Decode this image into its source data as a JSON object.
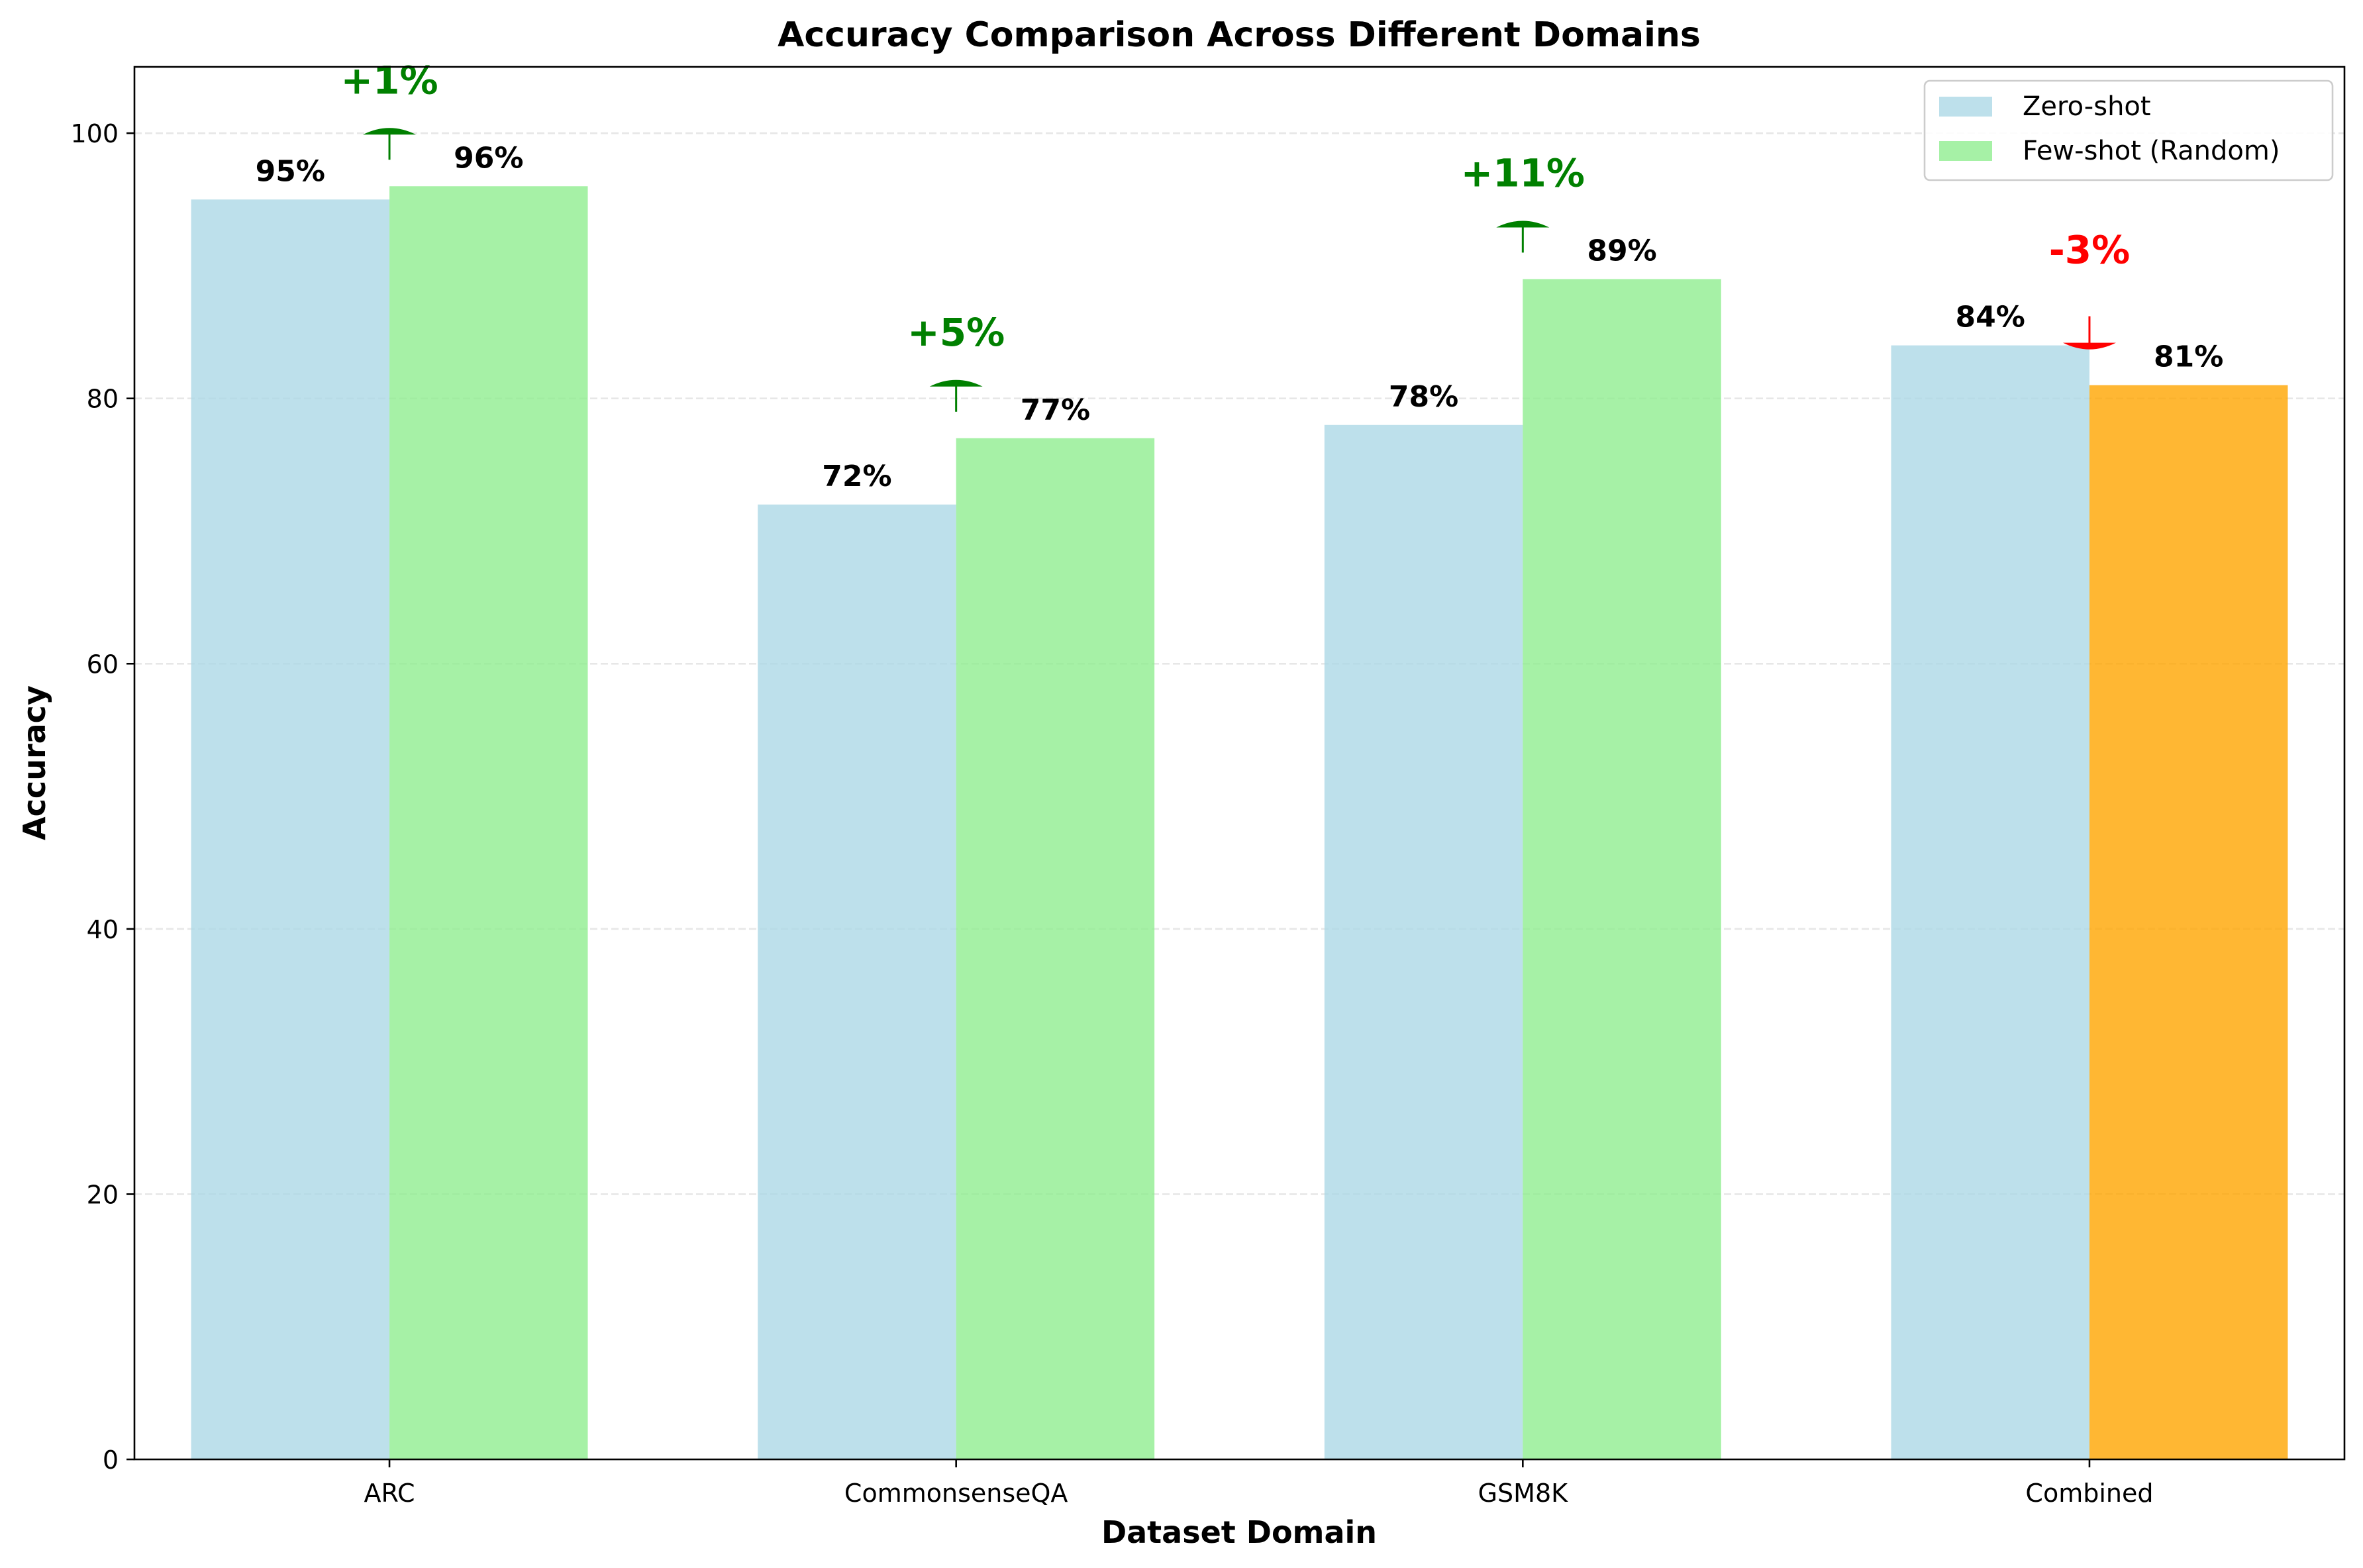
{
  "chart_data": {
    "type": "bar",
    "title": "Accuracy Comparison Across Different Domains",
    "xlabel": "Dataset Domain",
    "ylabel": "Accuracy",
    "ylim": [
      0,
      105
    ],
    "yticks": [
      0,
      20,
      40,
      60,
      80,
      100
    ],
    "grid": "y-dashed",
    "legend_position": "top-right",
    "categories": [
      "ARC",
      "CommonsenseQA",
      "GSM8K",
      "Combined"
    ],
    "series": [
      {
        "name": "Zero-shot",
        "values": [
          95,
          72,
          78,
          84
        ],
        "color": "#add8e6",
        "labels": [
          "95%",
          "72%",
          "78%",
          "84%"
        ]
      },
      {
        "name": "Few-shot (Random)",
        "values": [
          96,
          77,
          89,
          81
        ],
        "color": "#90ee90",
        "highlight_color": "#ffa500",
        "highlight_index": 3,
        "labels": [
          "96%",
          "77%",
          "89%",
          "81%"
        ]
      }
    ],
    "annotations": [
      {
        "category": "ARC",
        "text": "+1%",
        "direction": "up",
        "color": "#008000"
      },
      {
        "category": "CommonsenseQA",
        "text": "+5%",
        "direction": "up",
        "color": "#008000"
      },
      {
        "category": "GSM8K",
        "text": "+11%",
        "direction": "up",
        "color": "#008000"
      },
      {
        "category": "Combined",
        "text": "-3%",
        "direction": "down",
        "color": "#ff0000"
      }
    ]
  }
}
